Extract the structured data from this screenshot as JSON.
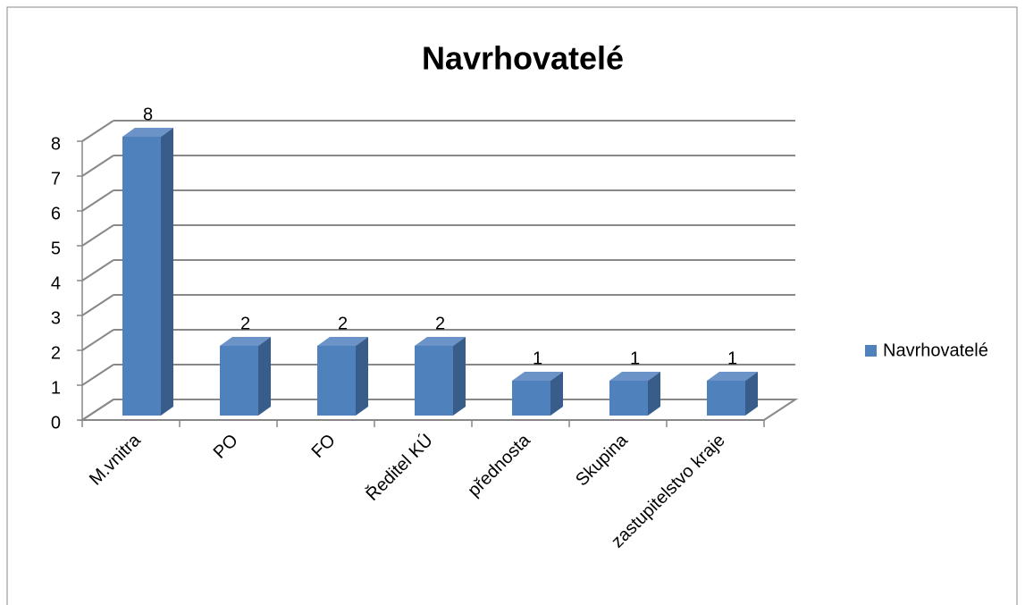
{
  "chart_data": {
    "type": "bar3d",
    "title": "Navrhovatelé",
    "categories": [
      "M.vnitra",
      "PO",
      "FO",
      "Ředitel KÚ",
      "přednosta",
      "Skupina",
      "zastupitelstvo kraje"
    ],
    "series": [
      {
        "name": "Navrhovatelé",
        "color": "#4f81bd",
        "values": [
          8,
          2,
          2,
          2,
          1,
          1,
          1
        ]
      }
    ],
    "ylim": [
      0,
      8
    ],
    "yticks": [
      0,
      1,
      2,
      3,
      4,
      5,
      6,
      7,
      8
    ],
    "grid": true,
    "legend": "right"
  }
}
